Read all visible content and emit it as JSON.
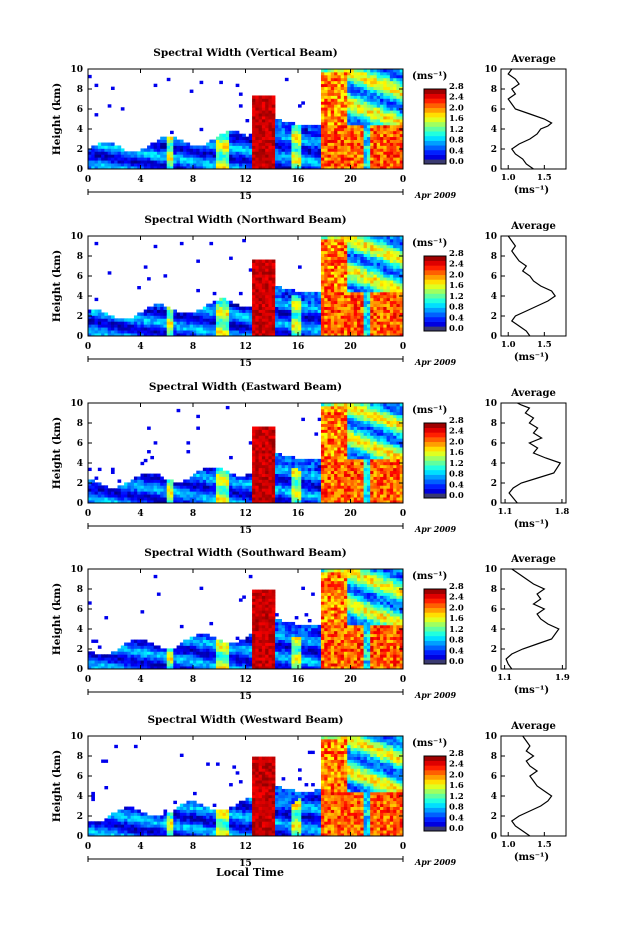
{
  "figure": {
    "xlabel": "Local Time"
  },
  "chart_data": [
    {
      "type": "heatmap",
      "title": "Spectral Width (Vertical Beam)",
      "ylabel": "Height (km)",
      "ylim": [
        0,
        10
      ],
      "xlim": [
        0,
        24
      ],
      "xticks": [
        "0",
        "4",
        "8",
        "12",
        "16",
        "20",
        "0"
      ],
      "yticks": [
        "0",
        "2",
        "4",
        "6",
        "8",
        "10"
      ],
      "date_day": "15",
      "date_month": "Apr 2009",
      "colorbar": {
        "unit": "(ms⁻¹)",
        "ticks": [
          "0.0",
          "0.4",
          "0.8",
          "1.2",
          "1.6",
          "2.0",
          "2.4",
          "2.8"
        ]
      }
    },
    {
      "type": "heatmap",
      "title": "Spectral Width (Northward Beam)",
      "ylabel": "Height (km)",
      "ylim": [
        0,
        10
      ],
      "xlim": [
        0,
        24
      ],
      "xticks": [
        "0",
        "4",
        "8",
        "12",
        "16",
        "20",
        "0"
      ],
      "yticks": [
        "0",
        "2",
        "4",
        "6",
        "8",
        "10"
      ],
      "date_day": "15",
      "date_month": "Apr 2009",
      "colorbar": {
        "unit": "(ms⁻¹)",
        "ticks": [
          "0.0",
          "0.4",
          "0.8",
          "1.2",
          "1.6",
          "2.0",
          "2.4",
          "2.8"
        ]
      }
    },
    {
      "type": "heatmap",
      "title": "Spectral Width (Eastward Beam)",
      "ylabel": "Height (km)",
      "ylim": [
        0,
        10
      ],
      "xlim": [
        0,
        24
      ],
      "xticks": [
        "0",
        "4",
        "8",
        "12",
        "16",
        "20",
        "0"
      ],
      "yticks": [
        "0",
        "2",
        "4",
        "6",
        "8",
        "10"
      ],
      "date_day": "15",
      "date_month": "Apr 2009",
      "colorbar": {
        "unit": "(ms⁻¹)",
        "ticks": [
          "0.0",
          "0.4",
          "0.8",
          "1.2",
          "1.6",
          "2.0",
          "2.4",
          "2.8"
        ]
      }
    },
    {
      "type": "heatmap",
      "title": "Spectral Width (Southward Beam)",
      "ylabel": "Height (km)",
      "ylim": [
        0,
        10
      ],
      "xlim": [
        0,
        24
      ],
      "xticks": [
        "0",
        "4",
        "8",
        "12",
        "16",
        "20",
        "0"
      ],
      "yticks": [
        "0",
        "2",
        "4",
        "6",
        "8",
        "10"
      ],
      "date_day": "15",
      "date_month": "Apr 2009",
      "colorbar": {
        "unit": "(ms⁻¹)",
        "ticks": [
          "0.0",
          "0.4",
          "0.8",
          "1.2",
          "1.6",
          "2.0",
          "2.4",
          "2.8"
        ]
      }
    },
    {
      "type": "heatmap",
      "title": "Spectral Width (Westward Beam)",
      "ylabel": "Height (km)",
      "ylim": [
        0,
        10
      ],
      "xlim": [
        0,
        24
      ],
      "xticks": [
        "0",
        "4",
        "8",
        "12",
        "16",
        "20",
        "0"
      ],
      "yticks": [
        "0",
        "2",
        "4",
        "6",
        "8",
        "10"
      ],
      "date_day": "15",
      "date_month": "Apr 2009",
      "colorbar": {
        "unit": "(ms⁻¹)",
        "ticks": [
          "0.0",
          "0.4",
          "0.8",
          "1.2",
          "1.6",
          "2.0",
          "2.4",
          "2.8"
        ]
      }
    },
    {
      "type": "line",
      "title": "Average",
      "xlabel": "(ms⁻¹)",
      "xlim": [
        0.9,
        1.8
      ],
      "xticks": [
        {
          "v": 1.0,
          "label": "1.0"
        },
        {
          "v": 1.5,
          "label": "1.5"
        }
      ],
      "ylim": [
        0,
        10
      ],
      "yticks": [
        "0",
        "2",
        "4",
        "6",
        "8",
        "10"
      ],
      "series": [
        {
          "x": [
            1.35,
            1.25,
            1.2,
            1.1,
            1.05,
            1.15,
            1.3,
            1.4,
            1.45,
            1.55,
            1.6,
            1.5,
            1.3,
            1.1,
            1.05,
            1.0,
            1.1,
            1.05,
            1.15,
            1.1,
            1.0,
            1.05
          ],
          "y": [
            0,
            0.5,
            1,
            1.5,
            2,
            2.5,
            3,
            3.5,
            4,
            4.3,
            4.6,
            5,
            5.5,
            6,
            6.5,
            7,
            7.5,
            8,
            8.5,
            9,
            9.5,
            10
          ]
        }
      ]
    },
    {
      "type": "line",
      "title": "Average",
      "xlabel": "(ms⁻¹)",
      "xlim": [
        0.9,
        1.8
      ],
      "xticks": [
        {
          "v": 1.0,
          "label": "1.0"
        },
        {
          "v": 1.5,
          "label": "1.5"
        }
      ],
      "ylim": [
        0,
        10
      ],
      "yticks": [
        "0",
        "2",
        "4",
        "6",
        "8",
        "10"
      ],
      "series": [
        {
          "x": [
            1.3,
            1.25,
            1.15,
            1.05,
            1.1,
            1.25,
            1.4,
            1.55,
            1.65,
            1.6,
            1.45,
            1.35,
            1.3,
            1.2,
            1.25,
            1.15,
            1.1,
            1.05,
            1.1,
            1.05,
            1.0
          ],
          "y": [
            0,
            0.5,
            1,
            1.5,
            2,
            2.5,
            3,
            3.5,
            4,
            4.5,
            5,
            5.5,
            6,
            6.5,
            7,
            7.5,
            8,
            8.5,
            9,
            9.5,
            10
          ]
        }
      ]
    },
    {
      "type": "line",
      "title": "Average",
      "xlabel": "(ms⁻¹)",
      "xlim": [
        1.05,
        1.85
      ],
      "xticks": [
        {
          "v": 1.1,
          "label": "1.1"
        },
        {
          "v": 1.8,
          "label": "1.8"
        }
      ],
      "ylim": [
        0,
        10
      ],
      "yticks": [
        "0",
        "2",
        "4",
        "6",
        "8",
        "10"
      ],
      "series": [
        {
          "x": [
            1.25,
            1.2,
            1.15,
            1.2,
            1.3,
            1.5,
            1.7,
            1.78,
            1.6,
            1.45,
            1.5,
            1.4,
            1.55,
            1.45,
            1.5,
            1.4,
            1.45,
            1.35,
            1.4,
            1.3,
            1.25
          ],
          "y": [
            0,
            0.5,
            1,
            1.5,
            2,
            2.5,
            3,
            4,
            4.5,
            5,
            5.5,
            6,
            6.5,
            7,
            7.5,
            8,
            8.5,
            9,
            9.5,
            9.8,
            10
          ]
        }
      ]
    },
    {
      "type": "line",
      "title": "Average",
      "xlabel": "(ms⁻¹)",
      "xlim": [
        1.05,
        1.95
      ],
      "xticks": [
        {
          "v": 1.1,
          "label": "1.1"
        },
        {
          "v": 1.9,
          "label": "1.9"
        }
      ],
      "ylim": [
        0,
        10
      ],
      "yticks": [
        "0",
        "2",
        "4",
        "6",
        "8",
        "10"
      ],
      "series": [
        {
          "x": [
            1.2,
            1.15,
            1.12,
            1.2,
            1.35,
            1.55,
            1.75,
            1.85,
            1.7,
            1.6,
            1.55,
            1.65,
            1.5,
            1.6,
            1.55,
            1.65,
            1.5,
            1.4,
            1.3,
            1.2
          ],
          "y": [
            0,
            0.5,
            1,
            1.5,
            2,
            2.5,
            3,
            4,
            4.5,
            5,
            5.5,
            6,
            6.5,
            7,
            7.5,
            8,
            8.5,
            9,
            9.5,
            10
          ]
        }
      ]
    },
    {
      "type": "line",
      "title": "Average",
      "xlabel": "(ms⁻¹)",
      "xlim": [
        0.9,
        1.8
      ],
      "xticks": [
        {
          "v": 1.0,
          "label": "1.0"
        },
        {
          "v": 1.5,
          "label": "1.5"
        }
      ],
      "ylim": [
        0,
        10
      ],
      "yticks": [
        "0",
        "2",
        "4",
        "6",
        "8",
        "10"
      ],
      "series": [
        {
          "x": [
            1.3,
            1.2,
            1.1,
            1.05,
            1.15,
            1.3,
            1.45,
            1.55,
            1.6,
            1.5,
            1.4,
            1.35,
            1.3,
            1.4,
            1.3,
            1.25,
            1.35,
            1.25,
            1.3,
            1.2
          ],
          "y": [
            0,
            0.5,
            1,
            1.5,
            2,
            2.5,
            3,
            3.5,
            4,
            4.5,
            5,
            5.5,
            6,
            6.5,
            7,
            7.5,
            8,
            8.5,
            9,
            10
          ]
        }
      ]
    }
  ]
}
